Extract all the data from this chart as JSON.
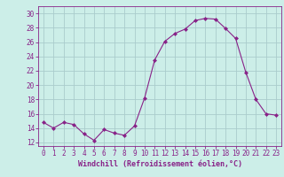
{
  "x": [
    0,
    1,
    2,
    3,
    4,
    5,
    6,
    7,
    8,
    9,
    10,
    11,
    12,
    13,
    14,
    15,
    16,
    17,
    18,
    19,
    20,
    21,
    22,
    23
  ],
  "y": [
    14.8,
    14.0,
    14.8,
    14.5,
    13.2,
    12.3,
    13.8,
    13.3,
    13.0,
    14.3,
    18.2,
    23.5,
    26.1,
    27.2,
    27.8,
    29.0,
    29.3,
    29.2,
    27.9,
    26.5,
    21.8,
    18.0,
    16.0,
    15.8
  ],
  "line_color": "#882288",
  "marker": "D",
  "marker_size": 2.0,
  "bg_color": "#cceee8",
  "grid_color": "#aacccc",
  "xlabel": "Windchill (Refroidissement éolien,°C)",
  "xlabel_color": "#882288",
  "tick_color": "#882288",
  "ylim": [
    11.5,
    31.0
  ],
  "yticks": [
    12,
    14,
    16,
    18,
    20,
    22,
    24,
    26,
    28,
    30
  ],
  "xlim": [
    -0.5,
    23.5
  ],
  "xticks": [
    0,
    1,
    2,
    3,
    4,
    5,
    6,
    7,
    8,
    9,
    10,
    11,
    12,
    13,
    14,
    15,
    16,
    17,
    18,
    19,
    20,
    21,
    22,
    23
  ],
  "spine_color": "#882288",
  "tick_fontsize": 5.5,
  "xlabel_fontsize": 6.0
}
